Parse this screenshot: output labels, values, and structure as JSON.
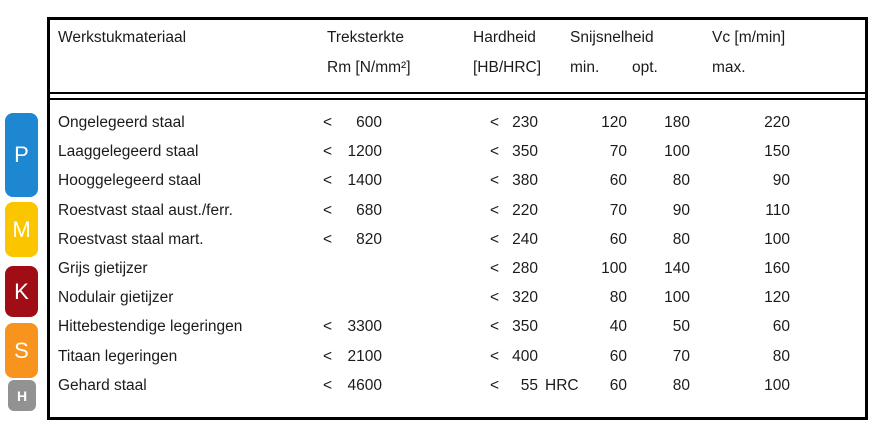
{
  "badges": [
    {
      "letter": "P",
      "color": "#1E87D2",
      "group": "steel"
    },
    {
      "letter": "M",
      "color": "#FBC500",
      "group": "stainless-steel"
    },
    {
      "letter": "K",
      "color": "#A00D14",
      "group": "cast-iron"
    },
    {
      "letter": "S",
      "color": "#F8941E",
      "group": "heat-resistant-alloys"
    },
    {
      "letter": "H",
      "color": "#929292",
      "group": "hardened-steel"
    }
  ],
  "table": {
    "less_than": "<",
    "headers": {
      "material": "Werkstukmateriaal",
      "tensile": "Treksterkte",
      "tensile_unit": "Rm [N/mm²]",
      "hardness": "Hardheid",
      "hardness_unit": "[HB/HRC]",
      "cutting_speed": "Snijsnelheid",
      "min": "min.",
      "opt": "opt.",
      "vc": "Vc [m/min]",
      "max": "max."
    },
    "rows": [
      {
        "material": "Ongelegeerd staal",
        "rm": "600",
        "hb": "230",
        "hb_suffix": "",
        "vmin": "120",
        "vopt": "180",
        "vmax": "220"
      },
      {
        "material": "Laaggelegeerd staal",
        "rm": "1200",
        "hb": "350",
        "hb_suffix": "",
        "vmin": "70",
        "vopt": "100",
        "vmax": "150"
      },
      {
        "material": "Hooggelegeerd staal",
        "rm": "1400",
        "hb": "380",
        "hb_suffix": "",
        "vmin": "60",
        "vopt": "80",
        "vmax": "90"
      },
      {
        "material": "Roestvast staal aust./ferr.",
        "rm": "680",
        "hb": "220",
        "hb_suffix": "",
        "vmin": "70",
        "vopt": "90",
        "vmax": "110"
      },
      {
        "material": "Roestvast staal mart.",
        "rm": "820",
        "hb": "240",
        "hb_suffix": "",
        "vmin": "60",
        "vopt": "80",
        "vmax": "100"
      },
      {
        "material": "Grijs gietijzer",
        "rm": "",
        "hb": "280",
        "hb_suffix": "",
        "vmin": "100",
        "vopt": "140",
        "vmax": "160"
      },
      {
        "material": "Nodulair gietijzer",
        "rm": "",
        "hb": "320",
        "hb_suffix": "",
        "vmin": "80",
        "vopt": "100",
        "vmax": "120"
      },
      {
        "material": "Hittebestendige legeringen",
        "rm": "3300",
        "hb": "350",
        "hb_suffix": "",
        "vmin": "40",
        "vopt": "50",
        "vmax": "60"
      },
      {
        "material": "Titaan legeringen",
        "rm": "2100",
        "hb": "400",
        "hb_suffix": "",
        "vmin": "60",
        "vopt": "70",
        "vmax": "80"
      },
      {
        "material": "Gehard staal",
        "rm": "4600",
        "hb": "55",
        "hb_suffix": "HRC",
        "vmin": "60",
        "vopt": "80",
        "vmax": "100"
      }
    ]
  }
}
